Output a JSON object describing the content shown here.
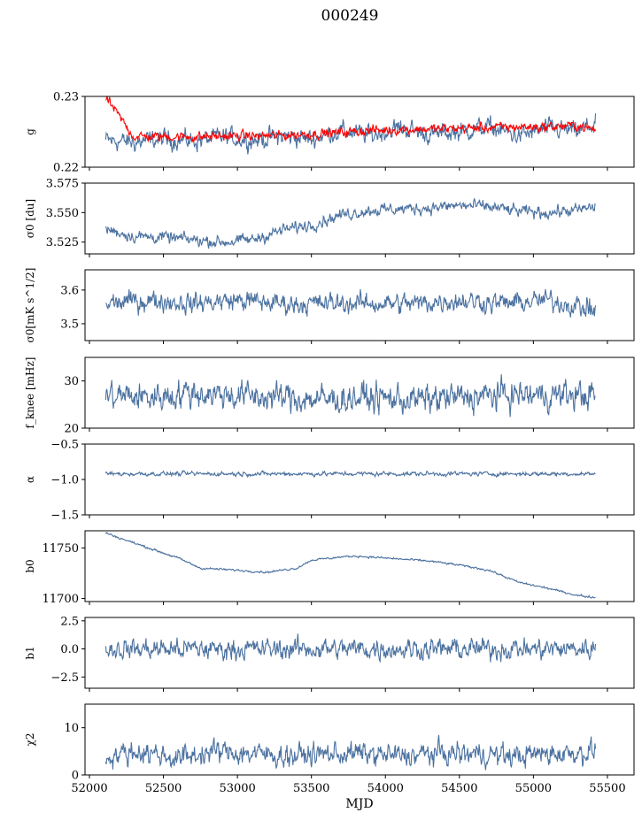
{
  "figure": {
    "title": "000249"
  },
  "chart_data": [
    {
      "type": "line",
      "ylabel": "g",
      "ylim": [
        0.22,
        0.23
      ],
      "yticks": [
        {
          "v": 0.22,
          "label": "0.22"
        },
        {
          "v": 0.23,
          "label": "0.23"
        }
      ],
      "x": [
        52110,
        52300,
        52500,
        52700,
        52900,
        53100,
        53300,
        53500,
        53700,
        53900,
        54100,
        54300,
        54500,
        54700,
        54900,
        55100,
        55300,
        55420
      ],
      "series": [
        {
          "color": "#4c72a0",
          "values": [
            0.2238,
            0.2235,
            0.224,
            0.2237,
            0.2243,
            0.2238,
            0.2244,
            0.224,
            0.2252,
            0.2245,
            0.2256,
            0.2246,
            0.225,
            0.2257,
            0.2244,
            0.2255,
            0.225,
            0.2262
          ],
          "noise": 0.0008
        },
        {
          "color": "#ff0000",
          "values": [
            0.2298,
            0.2243,
            0.2243,
            0.2243,
            0.2244,
            0.2244,
            0.2245,
            0.2247,
            0.2249,
            0.2252,
            0.2253,
            0.2254,
            0.2255,
            0.2256,
            0.2257,
            0.2257,
            0.2259,
            0.2252
          ],
          "noise": 0.0004
        }
      ]
    },
    {
      "type": "line",
      "ylabel": "σ0 [du]",
      "ylim": [
        3.515,
        3.575
      ],
      "yticks": [
        {
          "v": 3.525,
          "label": "3.525"
        },
        {
          "v": 3.55,
          "label": "3.550"
        },
        {
          "v": 3.575,
          "label": "3.575"
        }
      ],
      "x": [
        52110,
        52300,
        52500,
        52700,
        52900,
        53100,
        53300,
        53500,
        53700,
        53900,
        54100,
        54300,
        54500,
        54700,
        54900,
        55100,
        55300,
        55420
      ],
      "series": [
        {
          "color": "#4c72a0",
          "values": [
            3.536,
            3.53,
            3.529,
            3.527,
            3.525,
            3.527,
            3.535,
            3.54,
            3.548,
            3.552,
            3.553,
            3.554,
            3.556,
            3.555,
            3.551,
            3.55,
            3.552,
            3.555
          ],
          "noise": 0.003
        }
      ]
    },
    {
      "type": "line",
      "ylabel": "σ0[mK s^1/2]",
      "ylim": [
        3.45,
        3.66
      ],
      "yticks": [
        {
          "v": 3.5,
          "label": "3.5"
        },
        {
          "v": 3.6,
          "label": "3.6"
        }
      ],
      "x": [
        52110,
        52400,
        52700,
        53000,
        53300,
        53600,
        53900,
        54200,
        54500,
        54800,
        55100,
        55420
      ],
      "series": [
        {
          "color": "#4c72a0",
          "values": [
            3.56,
            3.57,
            3.56,
            3.57,
            3.56,
            3.56,
            3.56,
            3.56,
            3.57,
            3.56,
            3.57,
            3.54
          ],
          "noise": 0.018
        }
      ]
    },
    {
      "type": "line",
      "ylabel": "f_knee [mHz]",
      "ylim": [
        20,
        35
      ],
      "yticks": [
        {
          "v": 20,
          "label": "20"
        },
        {
          "v": 30,
          "label": "30"
        }
      ],
      "x": [
        52110,
        52400,
        52700,
        53000,
        53300,
        53600,
        53900,
        54200,
        54500,
        54800,
        55100,
        55420
      ],
      "series": [
        {
          "color": "#4c72a0",
          "values": [
            27,
            26.5,
            27.5,
            27,
            26.5,
            26,
            26.5,
            26,
            26.5,
            27,
            27,
            27
          ],
          "noise": 1.8
        }
      ]
    },
    {
      "type": "line",
      "ylabel": "α",
      "ylim": [
        -1.5,
        -0.5
      ],
      "yticks": [
        {
          "v": -1.5,
          "label": "−1.5"
        },
        {
          "v": -1.0,
          "label": "−1.0"
        },
        {
          "v": -0.5,
          "label": "−0.5"
        }
      ],
      "x": [
        52110,
        52700,
        53300,
        53900,
        54500,
        55100,
        55420
      ],
      "series": [
        {
          "color": "#4c72a0",
          "values": [
            -0.92,
            -0.92,
            -0.92,
            -0.92,
            -0.92,
            -0.92,
            -0.92
          ],
          "noise": 0.018
        }
      ]
    },
    {
      "type": "line",
      "ylabel": "b0",
      "ylim": [
        11697,
        11767
      ],
      "yticks": [
        {
          "v": 11700,
          "label": "11700"
        },
        {
          "v": 11750,
          "label": "11750"
        }
      ],
      "x": [
        52110,
        52200,
        52400,
        52600,
        52750,
        53000,
        53200,
        53400,
        53500,
        53700,
        53800,
        54000,
        54300,
        54500,
        54700,
        54900,
        55100,
        55300,
        55420
      ],
      "series": [
        {
          "color": "#4c72a0",
          "values": [
            11765,
            11760,
            11750,
            11740,
            11730,
            11728,
            11726,
            11730,
            11738,
            11741,
            11742,
            11740,
            11737,
            11733,
            11728,
            11716,
            11710,
            11703,
            11701
          ],
          "noise": 0.6
        }
      ]
    },
    {
      "type": "line",
      "ylabel": "b1",
      "ylim": [
        -3.5,
        2.8
      ],
      "yticks": [
        {
          "v": -2.5,
          "label": "−2.5"
        },
        {
          "v": 0,
          "label": "0.0"
        },
        {
          "v": 2.5,
          "label": "2.5"
        }
      ],
      "x": [
        52110,
        52700,
        53300,
        53900,
        54500,
        55100,
        55420
      ],
      "series": [
        {
          "color": "#4c72a0",
          "values": [
            0,
            0,
            0,
            0,
            0,
            0,
            0
          ],
          "noise": 0.55
        }
      ]
    },
    {
      "type": "line",
      "ylabel": "χ2",
      "ylim": [
        0,
        15
      ],
      "yticks": [
        {
          "v": 0,
          "label": "0"
        },
        {
          "v": 10,
          "label": "10"
        }
      ],
      "x": [
        52110,
        52350,
        52600,
        52850,
        53100,
        53350,
        53600,
        53850,
        54100,
        54350,
        54600,
        54850,
        55100,
        55420
      ],
      "series": [
        {
          "color": "#4c72a0",
          "values": [
            4,
            5,
            3.5,
            5,
            4.5,
            4,
            4.5,
            4.5,
            4,
            4.5,
            4.5,
            4,
            4.5,
            5
          ],
          "noise": 1.4
        }
      ]
    }
  ],
  "xaxis": {
    "label": "MJD",
    "xlim": [
      51970,
      55680
    ],
    "ticks": [
      {
        "v": 52000,
        "label": "52000"
      },
      {
        "v": 52500,
        "label": "52500"
      },
      {
        "v": 53000,
        "label": "53000"
      },
      {
        "v": 53500,
        "label": "53500"
      },
      {
        "v": 54000,
        "label": "54000"
      },
      {
        "v": 54500,
        "label": "54500"
      },
      {
        "v": 55000,
        "label": "55000"
      },
      {
        "v": 55500,
        "label": "55500"
      }
    ]
  }
}
